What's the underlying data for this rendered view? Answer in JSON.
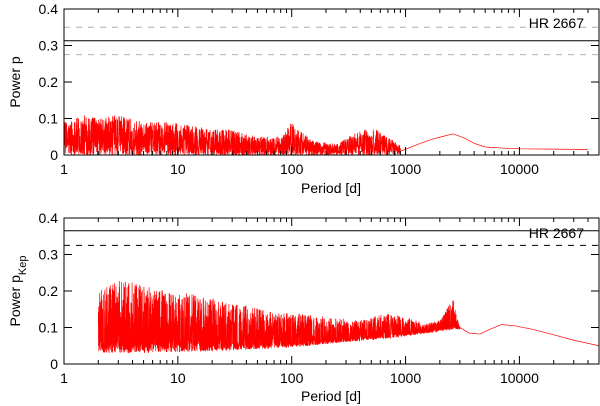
{
  "chart_data": [
    {
      "type": "line",
      "title": "",
      "xlabel": "Period [d]",
      "ylabel": "Power p",
      "ylabel_subscript": "",
      "xscale": "log",
      "xlim": [
        1,
        50000
      ],
      "ylim": [
        0,
        0.4
      ],
      "xticks": [
        1,
        10,
        100,
        1000,
        10000
      ],
      "xtick_labels": [
        "1",
        "10",
        "100",
        "1000",
        "10000"
      ],
      "yticks": [
        0,
        0.1,
        0.2,
        0.3,
        0.4
      ],
      "ytick_labels": [
        "0",
        "0.1",
        "0.2",
        "0.3",
        "0.4"
      ],
      "legend": {
        "text": "HR 2667",
        "position": "top-right"
      },
      "threshold_lines": [
        {
          "name": "upper dashed threshold",
          "y": 0.35,
          "style": "dashed",
          "color": "#b0b0b0"
        },
        {
          "name": "solid threshold",
          "y": 0.313,
          "style": "solid",
          "color": "#000000"
        },
        {
          "name": "lower dashed threshold",
          "y": 0.275,
          "style": "dashed",
          "color": "#b0b0b0"
        }
      ],
      "series": [
        {
          "name": "periodogram",
          "color": "#ff0000",
          "x_range": [
            1,
            40000
          ],
          "envelope": [
            [
              1,
              0.09
            ],
            [
              1.5,
              0.11
            ],
            [
              2,
              0.1
            ],
            [
              3,
              0.11
            ],
            [
              5,
              0.09
            ],
            [
              8,
              0.09
            ],
            [
              12,
              0.085
            ],
            [
              20,
              0.07
            ],
            [
              30,
              0.07
            ],
            [
              50,
              0.05
            ],
            [
              80,
              0.05
            ],
            [
              100,
              0.09
            ],
            [
              150,
              0.04
            ],
            [
              250,
              0.03
            ],
            [
              400,
              0.07
            ],
            [
              550,
              0.07
            ],
            [
              700,
              0.05
            ],
            [
              1000,
              0.015
            ],
            [
              1500,
              0.04
            ],
            [
              2200,
              0.055
            ],
            [
              2600,
              0.06
            ],
            [
              3500,
              0.04
            ],
            [
              5000,
              0.022
            ],
            [
              10000,
              0.018
            ],
            [
              20000,
              0.016
            ],
            [
              40000,
              0.015
            ]
          ],
          "low_frequency_smooth": [
            [
              900,
              0.01
            ],
            [
              1300,
              0.03
            ],
            [
              1700,
              0.043
            ],
            [
              2200,
              0.052
            ],
            [
              2600,
              0.058
            ],
            [
              3200,
              0.048
            ],
            [
              4000,
              0.032
            ],
            [
              5000,
              0.022
            ],
            [
              7000,
              0.019
            ],
            [
              10000,
              0.017
            ],
            [
              20000,
              0.016
            ],
            [
              40000,
              0.015
            ]
          ]
        }
      ]
    },
    {
      "type": "line",
      "title": "",
      "xlabel": "Period [d]",
      "ylabel": "Power p",
      "ylabel_subscript": "Kep",
      "xscale": "log",
      "xlim": [
        1,
        50000
      ],
      "ylim": [
        0,
        0.4
      ],
      "xticks": [
        1,
        10,
        100,
        1000,
        10000
      ],
      "xtick_labels": [
        "1",
        "10",
        "100",
        "1000",
        "10000"
      ],
      "yticks": [
        0,
        0.1,
        0.2,
        0.3,
        0.4
      ],
      "ytick_labels": [
        "0",
        "0.1",
        "0.2",
        "0.3",
        "0.4"
      ],
      "legend": {
        "text": "HR 2667",
        "position": "top-right"
      },
      "threshold_lines": [
        {
          "name": "solid threshold",
          "y": 0.365,
          "style": "solid",
          "color": "#000000"
        },
        {
          "name": "dashed threshold",
          "y": 0.325,
          "style": "dashed",
          "color": "#000000"
        }
      ],
      "series": [
        {
          "name": "keplerian periodogram",
          "color": "#ff0000",
          "x_range": [
            2,
            50000
          ],
          "envelope_top": [
            [
              2,
              0.2
            ],
            [
              3,
              0.23
            ],
            [
              5,
              0.22
            ],
            [
              8,
              0.2
            ],
            [
              15,
              0.19
            ],
            [
              25,
              0.17
            ],
            [
              40,
              0.16
            ],
            [
              70,
              0.14
            ],
            [
              100,
              0.14
            ],
            [
              200,
              0.13
            ],
            [
              400,
              0.12
            ],
            [
              700,
              0.14
            ],
            [
              1000,
              0.13
            ],
            [
              1500,
              0.11
            ],
            [
              2000,
              0.12
            ],
            [
              2600,
              0.18
            ],
            [
              3000,
              0.1
            ]
          ],
          "envelope_bottom": [
            [
              2,
              0.03
            ],
            [
              5,
              0.03
            ],
            [
              20,
              0.035
            ],
            [
              100,
              0.045
            ],
            [
              300,
              0.06
            ],
            [
              700,
              0.07
            ],
            [
              1200,
              0.08
            ],
            [
              2000,
              0.09
            ],
            [
              3000,
              0.095
            ]
          ],
          "low_frequency_smooth": [
            [
              3000,
              0.1
            ],
            [
              3600,
              0.085
            ],
            [
              4500,
              0.082
            ],
            [
              5500,
              0.095
            ],
            [
              7000,
              0.108
            ],
            [
              9000,
              0.105
            ],
            [
              13000,
              0.095
            ],
            [
              20000,
              0.08
            ],
            [
              30000,
              0.065
            ],
            [
              50000,
              0.05
            ]
          ]
        }
      ]
    }
  ]
}
